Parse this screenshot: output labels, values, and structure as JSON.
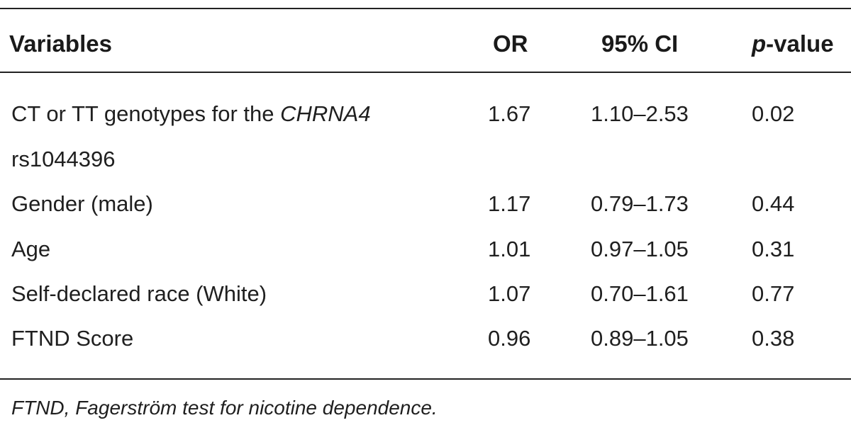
{
  "table": {
    "headers": {
      "variables": "Variables",
      "or": "OR",
      "ci": "95% CI",
      "p_italic": "p",
      "p_rest": "-value"
    },
    "rows": [
      {
        "variable_prefix": "CT or TT genotypes for the ",
        "variable_italic": "CHRNA4",
        "variable_line2": "rs1044396",
        "or": "1.67",
        "ci": "1.10–2.53",
        "p": "0.02"
      },
      {
        "variable": "Gender (male)",
        "or": "1.17",
        "ci": "0.79–1.73",
        "p": "0.44"
      },
      {
        "variable": "Age",
        "or": "1.01",
        "ci": "0.97–1.05",
        "p": "0.31"
      },
      {
        "variable": "Self-declared race (White)",
        "or": "1.07",
        "ci": "0.70–1.61",
        "p": "0.77"
      },
      {
        "variable": "FTND Score",
        "or": "0.96",
        "ci": "0.89–1.05",
        "p": "0.38"
      }
    ]
  },
  "footnote": "FTND, Fagerström test for nicotine dependence."
}
